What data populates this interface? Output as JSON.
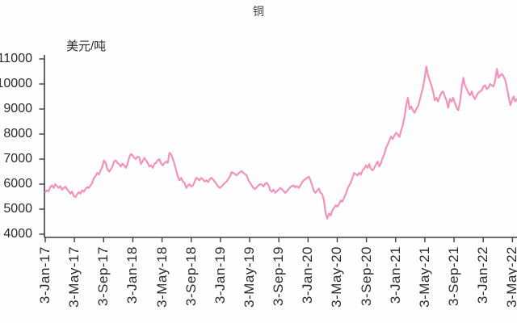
{
  "chart_data": {
    "type": "line",
    "title": "铜",
    "unit_label": "美元/吨",
    "xlabel": "",
    "ylabel": "美元/吨",
    "ylim": [
      4000,
      11000
    ],
    "y_ticks": [
      4000,
      5000,
      6000,
      7000,
      8000,
      9000,
      10000,
      11000
    ],
    "x_tick_labels": [
      "3-Jan-17",
      "3-May-17",
      "3-Sep-17",
      "3-Jan-18",
      "3-May-18",
      "3-Sep-18",
      "3-Jan-19",
      "3-May-19",
      "3-Sep-19",
      "3-Jan-20",
      "3-May-20",
      "3-Sep-20",
      "3-Jan-21",
      "3-May-21",
      "3-Sep-21",
      "3-Jan-22",
      "3-May-22"
    ],
    "x_tick_interval_months": 4,
    "x_start_label": "3-Jan-17",
    "frequency": "weekly",
    "grid": "off",
    "legend_position": "none",
    "line_color": "#F492BB",
    "axis_color": "#3f3f3f",
    "text_color": "#2b2b2b",
    "series": [
      {
        "name": "铜",
        "values": [
          5680,
          5750,
          5720,
          5880,
          5950,
          5850,
          6000,
          5920,
          5850,
          5920,
          5780,
          5850,
          5900,
          5800,
          5720,
          5620,
          5700,
          5520,
          5480,
          5600,
          5680,
          5620,
          5750,
          5700,
          5800,
          5880,
          5850,
          5950,
          6050,
          6250,
          6320,
          6450,
          6380,
          6550,
          6700,
          6950,
          6850,
          6600,
          6500,
          6580,
          6700,
          6900,
          6950,
          6850,
          6800,
          6700,
          6820,
          6750,
          6650,
          6800,
          7050,
          7200,
          7150,
          7050,
          7000,
          7100,
          7080,
          6800,
          6900,
          7050,
          6950,
          6850,
          6700,
          6750,
          6650,
          6800,
          6850,
          6950,
          7000,
          6820,
          6750,
          6850,
          6900,
          6850,
          7250,
          7180,
          7000,
          6800,
          6550,
          6300,
          6150,
          6250,
          6100,
          6050,
          5850,
          5950,
          6000,
          5900,
          5950,
          6100,
          6250,
          6200,
          6150,
          6250,
          6180,
          6100,
          6150,
          6080,
          6200,
          6250,
          6180,
          6100,
          6000,
          5900,
          5850,
          5900,
          5980,
          6050,
          6100,
          6200,
          6300,
          6480,
          6450,
          6400,
          6350,
          6420,
          6480,
          6520,
          6450,
          6400,
          6350,
          6150,
          6050,
          5950,
          5850,
          5800,
          5880,
          5950,
          6000,
          5980,
          5900,
          6020,
          6050,
          5950,
          5750,
          5700,
          5780,
          5650,
          5720,
          5780,
          5850,
          5800,
          5720,
          5650,
          5720,
          5800,
          5880,
          5920,
          5950,
          5870,
          5920,
          5850,
          5950,
          6080,
          6150,
          6200,
          6250,
          6300,
          6150,
          5950,
          5720,
          5650,
          5750,
          5820,
          5650,
          5600,
          5350,
          4850,
          4620,
          4820,
          4750,
          4950,
          5050,
          5150,
          5100,
          5200,
          5350,
          5300,
          5450,
          5600,
          5800,
          5950,
          6050,
          6250,
          6450,
          6400,
          6350,
          6450,
          6380,
          6550,
          6620,
          6750,
          6650,
          6800,
          6600,
          6550,
          6650,
          6780,
          6900,
          6700,
          6850,
          7050,
          7200,
          7450,
          7600,
          7750,
          7900,
          7800,
          7950,
          8050,
          7980,
          7880,
          8150,
          8350,
          8700,
          9150,
          9450,
          9000,
          9100,
          8950,
          8850,
          9000,
          9100,
          9350,
          9600,
          9850,
          10250,
          10700,
          10350,
          10150,
          9950,
          9700,
          9350,
          9450,
          9300,
          9500,
          9650,
          9700,
          9500,
          9350,
          9050,
          9400,
          9300,
          9450,
          9250,
          9050,
          8950,
          9250,
          9800,
          10250,
          9950,
          9800,
          9650,
          9550,
          9700,
          9500,
          9400,
          9550,
          9650,
          9700,
          9750,
          9900,
          9950,
          9800,
          9850,
          10000,
          9950,
          9900,
          10150,
          10600,
          10250,
          10350,
          10400,
          10300,
          10150,
          9850,
          9500,
          9150,
          9350,
          9500,
          9300,
          9400
        ]
      }
    ]
  }
}
